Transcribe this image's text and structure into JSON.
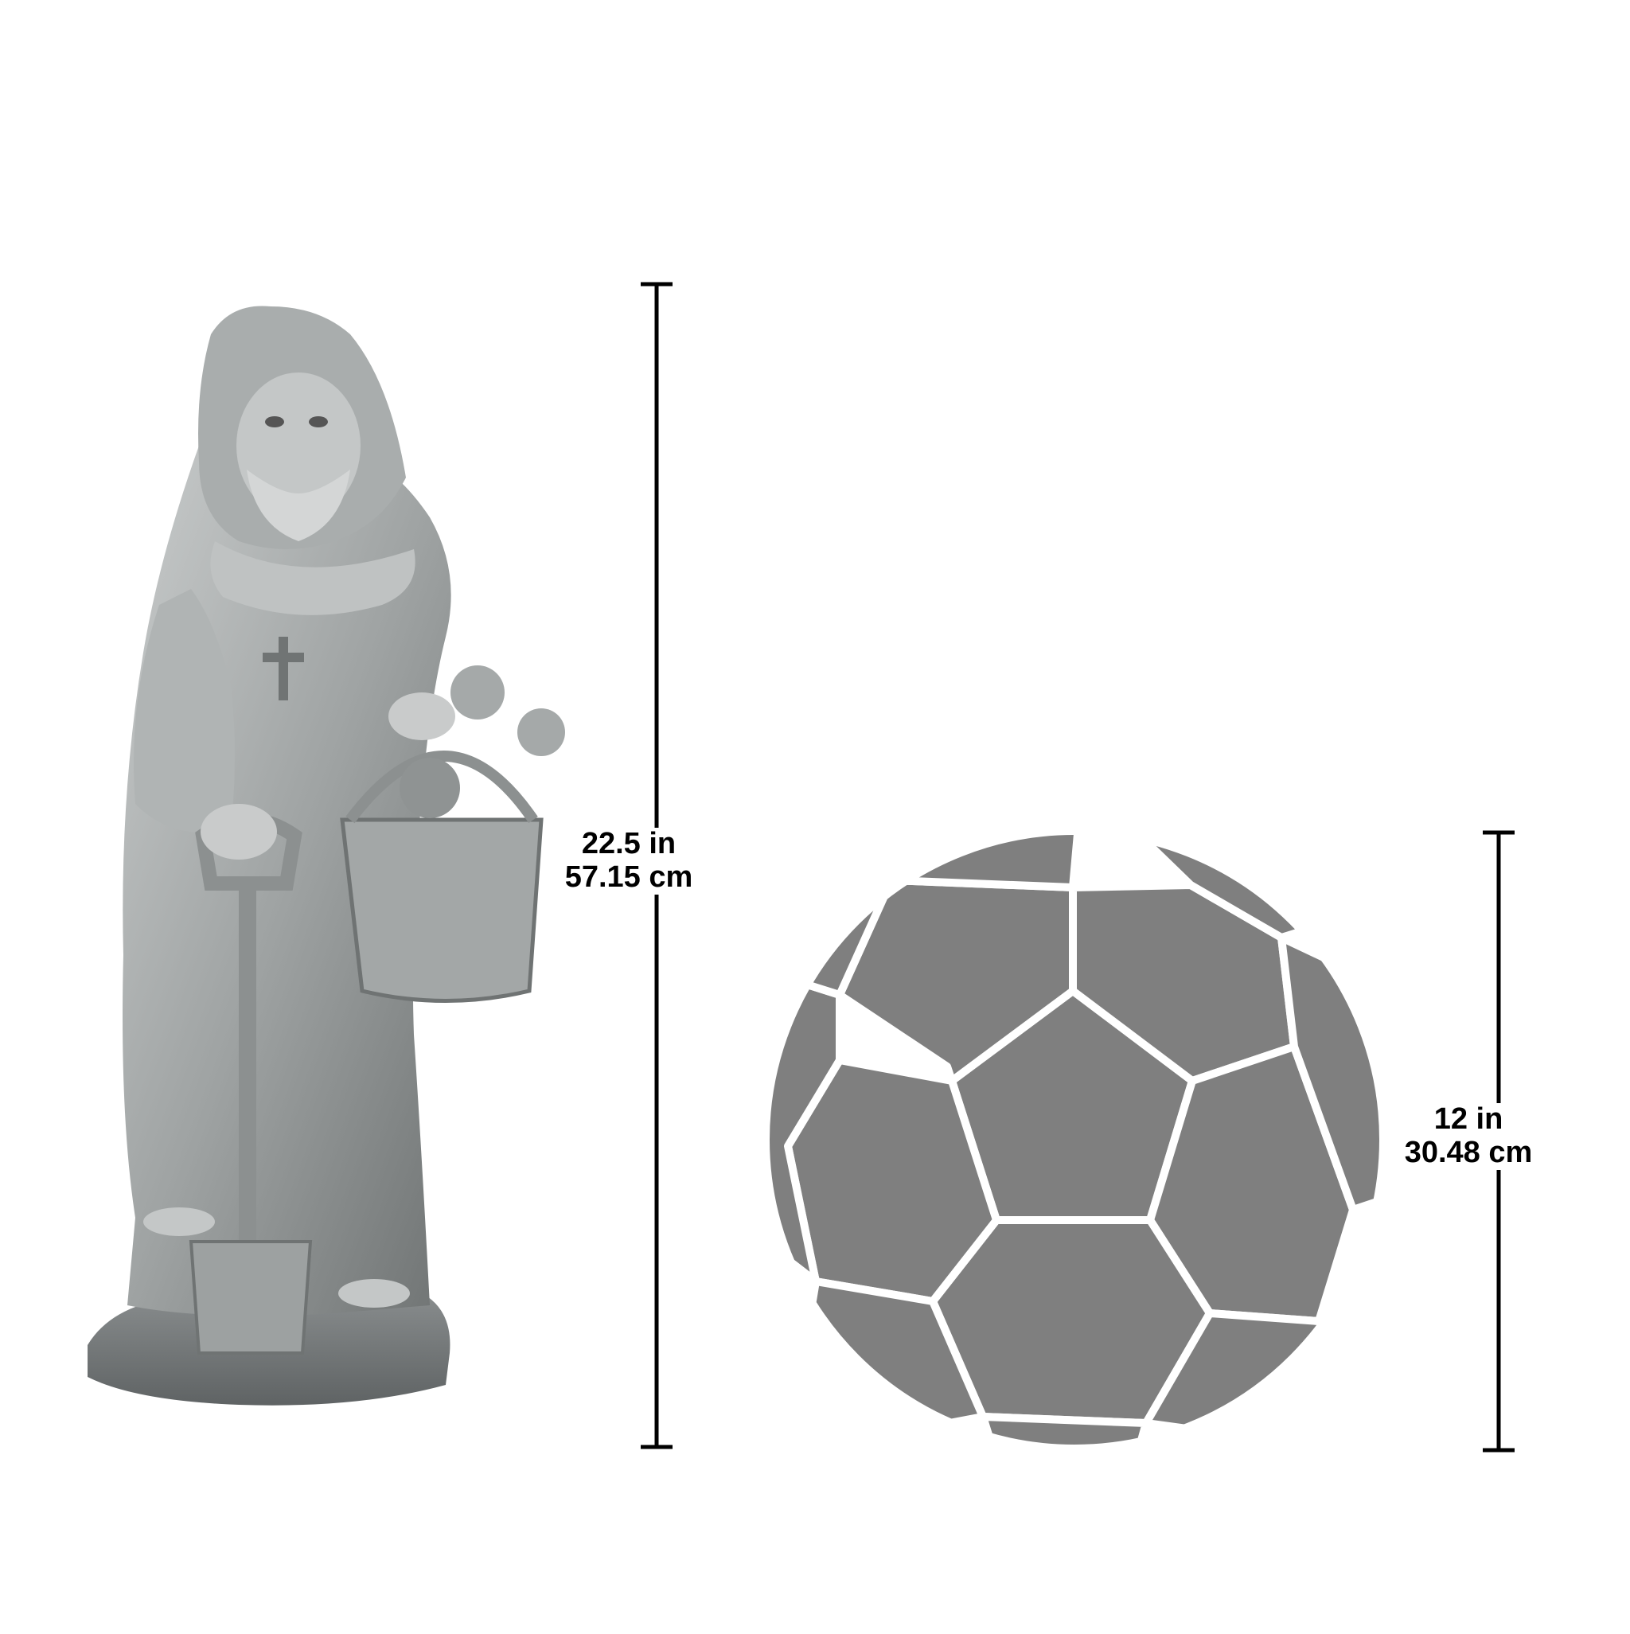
{
  "statue_dimension": {
    "imperial": "22.5 in",
    "metric": "57.15 cm"
  },
  "ball_dimension": {
    "imperial": "12 in",
    "metric": "30.48 cm"
  },
  "colors": {
    "statue_stone": "#9a9e9f",
    "ball_fill": "#7f7f7f",
    "line": "#000000"
  },
  "icons": {
    "statue": "gardener-monk-statue",
    "ball": "soccer-ball-scale-reference"
  }
}
